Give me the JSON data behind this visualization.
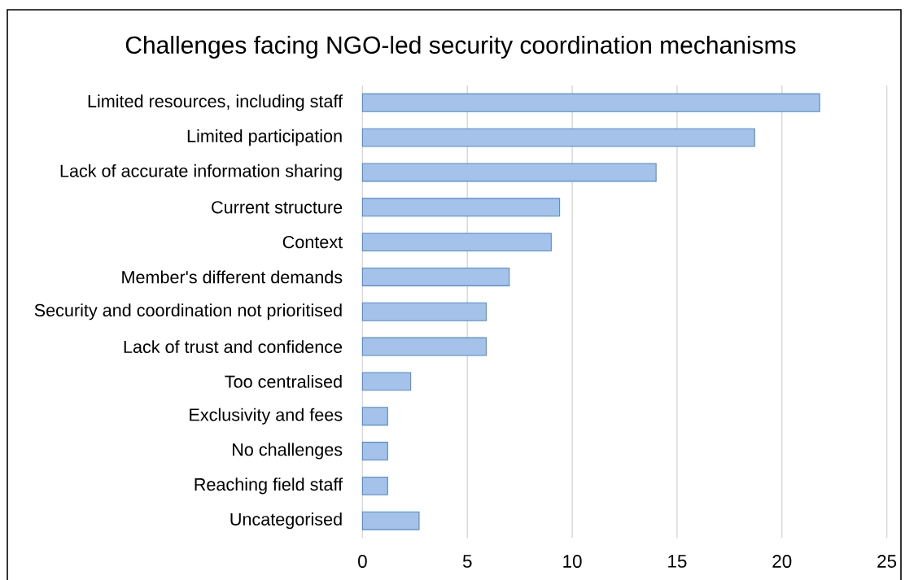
{
  "chart_data": {
    "type": "bar",
    "orientation": "horizontal",
    "title": "Challenges facing NGO-led security coordination mechanisms",
    "categories": [
      "Limited resources, including staff",
      "Limited participation",
      "Lack of accurate information sharing",
      "Current structure",
      "Context",
      "Member's different demands",
      "Security and coordination not prioritised",
      "Lack of trust and confidence",
      "Too centralised",
      "Exclusivity and fees",
      "No challenges",
      "Reaching field staff",
      "Uncategorised"
    ],
    "values": [
      21.8,
      18.7,
      14.0,
      9.4,
      9.0,
      7.0,
      5.9,
      5.9,
      2.3,
      1.2,
      1.2,
      1.2,
      2.7
    ],
    "color": "#a4c2ea",
    "xlim": [
      0,
      25
    ],
    "xticks": [
      0,
      5,
      10,
      15,
      20,
      25
    ],
    "grid": "x"
  }
}
